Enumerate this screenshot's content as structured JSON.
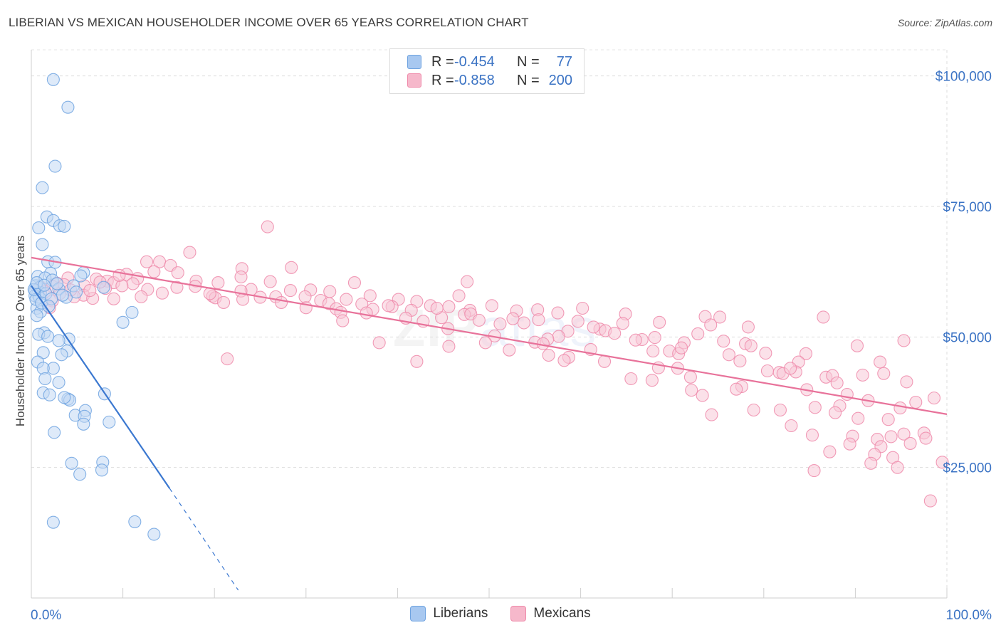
{
  "header": {
    "title": "LIBERIAN VS MEXICAN HOUSEHOLDER INCOME OVER 65 YEARS CORRELATION CHART",
    "source": "Source: ZipAtlas.com"
  },
  "legend_top": {
    "rows": [
      {
        "r_label": "R =",
        "r_value": "-0.454",
        "n_label": "N =",
        "n_value": "77",
        "color": "#a8c8f0"
      },
      {
        "r_label": "R =",
        "r_value": "-0.858",
        "n_label": "N =",
        "n_value": "200",
        "color": "#f6b8cb"
      }
    ]
  },
  "legend_bottom": {
    "items": [
      {
        "label": "Liberians",
        "color": "#a8c8f0"
      },
      {
        "label": "Mexicans",
        "color": "#f6b8cb"
      }
    ]
  },
  "watermark": {
    "main": "ZIP",
    "sub": "atlas"
  },
  "chart_data": {
    "type": "scatter",
    "title": "LIBERIAN VS MEXICAN HOUSEHOLDER INCOME OVER 65 YEARS CORRELATION CHART",
    "xlabel": "",
    "ylabel": "Householder Income Over 65 years",
    "xlim": [
      0,
      100
    ],
    "ylim": [
      0,
      105000
    ],
    "x_tick_labels": [
      "0.0%",
      "100.0%"
    ],
    "y_ticks": [
      25000,
      50000,
      75000,
      100000
    ],
    "y_tick_labels": [
      "$25,000",
      "$50,000",
      "$75,000",
      "$100,000"
    ],
    "grid": true,
    "series": [
      {
        "name": "Liberians",
        "color": "#6fa3e0",
        "fill": "#c2d8f4",
        "r": -0.454,
        "n": 77,
        "trendline": {
          "x": [
            0.0,
            15.1
          ],
          "y": [
            59800,
            21000
          ],
          "extended_to": [
            22.6,
            1500
          ]
        },
        "points": [
          [
            2.4,
            99300
          ],
          [
            4.0,
            94000
          ],
          [
            2.6,
            82700
          ],
          [
            1.2,
            78600
          ],
          [
            1.7,
            73000
          ],
          [
            2.4,
            72300
          ],
          [
            3.1,
            71300
          ],
          [
            3.6,
            71200
          ],
          [
            0.8,
            70900
          ],
          [
            1.2,
            67700
          ],
          [
            1.8,
            64400
          ],
          [
            2.6,
            64300
          ],
          [
            5.7,
            62300
          ],
          [
            2.1,
            62200
          ],
          [
            5.4,
            61700
          ],
          [
            0.7,
            61600
          ],
          [
            1.5,
            61300
          ],
          [
            2.3,
            60900
          ],
          [
            4.6,
            59800
          ],
          [
            0.5,
            59800
          ],
          [
            0.9,
            59500
          ],
          [
            7.9,
            59500
          ],
          [
            3.0,
            59200
          ],
          [
            0.4,
            58900
          ],
          [
            1.0,
            58500
          ],
          [
            0.7,
            58100
          ],
          [
            0.4,
            57900
          ],
          [
            3.8,
            57600
          ],
          [
            0.9,
            57500
          ],
          [
            0.6,
            55500
          ],
          [
            1.0,
            54800
          ],
          [
            0.6,
            54100
          ],
          [
            11.0,
            54700
          ],
          [
            10.0,
            52800
          ],
          [
            1.4,
            50800
          ],
          [
            0.8,
            50500
          ],
          [
            1.8,
            50100
          ],
          [
            4.1,
            49600
          ],
          [
            3.0,
            49300
          ],
          [
            1.3,
            47000
          ],
          [
            3.9,
            47300
          ],
          [
            3.3,
            46600
          ],
          [
            0.7,
            45200
          ],
          [
            2.4,
            44000
          ],
          [
            1.3,
            44000
          ],
          [
            1.5,
            42000
          ],
          [
            3.0,
            41300
          ],
          [
            8.0,
            39100
          ],
          [
            1.3,
            39300
          ],
          [
            2.0,
            38900
          ],
          [
            4.0,
            38100
          ],
          [
            4.2,
            37900
          ],
          [
            3.6,
            38400
          ],
          [
            5.9,
            35900
          ],
          [
            4.8,
            35000
          ],
          [
            5.8,
            34800
          ],
          [
            8.5,
            33700
          ],
          [
            5.7,
            33300
          ],
          [
            2.5,
            31700
          ],
          [
            7.8,
            26000
          ],
          [
            4.4,
            25800
          ],
          [
            7.7,
            24500
          ],
          [
            5.3,
            23700
          ],
          [
            2.4,
            14500
          ],
          [
            11.3,
            14600
          ],
          [
            13.4,
            12200
          ],
          [
            0.5,
            57200
          ],
          [
            1.6,
            58300
          ],
          [
            2.8,
            60200
          ],
          [
            1.1,
            56500
          ],
          [
            0.3,
            59100
          ],
          [
            3.4,
            58000
          ],
          [
            2.2,
            57300
          ],
          [
            1.9,
            55900
          ],
          [
            0.6,
            60400
          ],
          [
            4.9,
            58600
          ],
          [
            1.4,
            59900
          ]
        ]
      },
      {
        "name": "Mexicans",
        "color": "#ef8aaa",
        "fill": "#f8c9d7",
        "r": -0.858,
        "n": 200,
        "trendline": {
          "x": [
            0.0,
            100.0
          ],
          "y": [
            65200,
            35200
          ]
        },
        "points": [
          [
            25.8,
            71100
          ],
          [
            17.3,
            66200
          ],
          [
            12.6,
            64400
          ],
          [
            14.0,
            64400
          ],
          [
            15.2,
            63700
          ],
          [
            23.0,
            63100
          ],
          [
            28.4,
            63300
          ],
          [
            13.4,
            62500
          ],
          [
            16.0,
            62300
          ],
          [
            10.4,
            62000
          ],
          [
            11.6,
            61200
          ],
          [
            7.1,
            61100
          ],
          [
            4.0,
            61300
          ],
          [
            22.9,
            61500
          ],
          [
            8.3,
            60700
          ],
          [
            9.0,
            60400
          ],
          [
            18.0,
            60700
          ],
          [
            20.4,
            60400
          ],
          [
            35.3,
            60400
          ],
          [
            47.6,
            60600
          ],
          [
            11.1,
            60200
          ],
          [
            2.8,
            60300
          ],
          [
            5.8,
            59800
          ],
          [
            9.9,
            59800
          ],
          [
            17.9,
            59700
          ],
          [
            2.3,
            59700
          ],
          [
            1.1,
            59500
          ],
          [
            8.1,
            59300
          ],
          [
            12.7,
            59100
          ],
          [
            24.0,
            59100
          ],
          [
            28.3,
            58900
          ],
          [
            30.5,
            59000
          ],
          [
            32.6,
            58700
          ],
          [
            22.9,
            58800
          ],
          [
            14.3,
            58400
          ],
          [
            5.7,
            58000
          ],
          [
            3.1,
            58300
          ],
          [
            26.7,
            57700
          ],
          [
            37.0,
            57900
          ],
          [
            46.7,
            57900
          ],
          [
            19.8,
            57800
          ],
          [
            25.0,
            57600
          ],
          [
            29.9,
            57700
          ],
          [
            12.0,
            57700
          ],
          [
            20.1,
            57500
          ],
          [
            6.7,
            57400
          ],
          [
            9.0,
            57300
          ],
          [
            23.1,
            57200
          ],
          [
            34.4,
            57200
          ],
          [
            31.6,
            57000
          ],
          [
            40.1,
            57200
          ],
          [
            42.1,
            56800
          ],
          [
            21.0,
            56600
          ],
          [
            27.3,
            56600
          ],
          [
            32.5,
            56400
          ],
          [
            36.1,
            56300
          ],
          [
            43.6,
            56000
          ],
          [
            50.3,
            56000
          ],
          [
            45.6,
            55800
          ],
          [
            39.4,
            55800
          ],
          [
            33.3,
            55400
          ],
          [
            37.3,
            55300
          ],
          [
            41.5,
            55100
          ],
          [
            47.9,
            55100
          ],
          [
            55.3,
            55200
          ],
          [
            60.2,
            55500
          ],
          [
            53.0,
            55000
          ],
          [
            33.8,
            54700
          ],
          [
            36.6,
            54600
          ],
          [
            47.3,
            54300
          ],
          [
            48.0,
            54400
          ],
          [
            57.5,
            54600
          ],
          [
            64.9,
            54400
          ],
          [
            73.6,
            53900
          ],
          [
            75.2,
            53800
          ],
          [
            86.5,
            53800
          ],
          [
            40.9,
            53600
          ],
          [
            44.8,
            53700
          ],
          [
            52.6,
            53500
          ],
          [
            55.4,
            53300
          ],
          [
            59.7,
            53000
          ],
          [
            34.0,
            53100
          ],
          [
            42.8,
            53000
          ],
          [
            51.2,
            52500
          ],
          [
            64.6,
            52600
          ],
          [
            68.6,
            52800
          ],
          [
            74.2,
            52300
          ],
          [
            78.3,
            51900
          ],
          [
            45.5,
            51600
          ],
          [
            62.1,
            51500
          ],
          [
            58.6,
            51100
          ],
          [
            62.7,
            51200
          ],
          [
            63.7,
            50700
          ],
          [
            72.8,
            50600
          ],
          [
            50.6,
            50200
          ],
          [
            57.6,
            50100
          ],
          [
            68.1,
            49900
          ],
          [
            66.7,
            49500
          ],
          [
            56.4,
            49600
          ],
          [
            38.0,
            48900
          ],
          [
            49.6,
            48900
          ],
          [
            55.0,
            49000
          ],
          [
            55.9,
            48700
          ],
          [
            75.6,
            49200
          ],
          [
            71.3,
            48900
          ],
          [
            78.0,
            48700
          ],
          [
            78.6,
            48300
          ],
          [
            90.2,
            48300
          ],
          [
            95.3,
            49300
          ],
          [
            45.6,
            48200
          ],
          [
            52.2,
            47500
          ],
          [
            61.1,
            47600
          ],
          [
            67.9,
            47300
          ],
          [
            69.7,
            47300
          ],
          [
            70.7,
            46800
          ],
          [
            80.2,
            46900
          ],
          [
            84.6,
            46800
          ],
          [
            56.5,
            46500
          ],
          [
            58.7,
            46100
          ],
          [
            21.4,
            45800
          ],
          [
            42.1,
            45300
          ],
          [
            58.2,
            45500
          ],
          [
            62.6,
            45300
          ],
          [
            77.4,
            45400
          ],
          [
            83.8,
            45200
          ],
          [
            92.7,
            45200
          ],
          [
            68.5,
            44100
          ],
          [
            70.6,
            44000
          ],
          [
            80.4,
            43500
          ],
          [
            81.7,
            43200
          ],
          [
            82.1,
            43000
          ],
          [
            83.5,
            43300
          ],
          [
            72.0,
            42300
          ],
          [
            86.8,
            42300
          ],
          [
            93.1,
            43000
          ],
          [
            87.5,
            42600
          ],
          [
            90.8,
            42700
          ],
          [
            65.5,
            42000
          ],
          [
            67.8,
            41700
          ],
          [
            77.6,
            40500
          ],
          [
            72.1,
            39800
          ],
          [
            77.0,
            40000
          ],
          [
            84.7,
            39900
          ],
          [
            89.1,
            39000
          ],
          [
            73.3,
            38800
          ],
          [
            98.6,
            38300
          ],
          [
            95.6,
            41400
          ],
          [
            91.4,
            37800
          ],
          [
            85.6,
            36500
          ],
          [
            88.3,
            36800
          ],
          [
            94.9,
            36400
          ],
          [
            78.9,
            36000
          ],
          [
            81.8,
            36000
          ],
          [
            87.8,
            35500
          ],
          [
            74.3,
            35100
          ],
          [
            90.3,
            34400
          ],
          [
            93.6,
            34200
          ],
          [
            97.5,
            31600
          ],
          [
            89.7,
            31000
          ],
          [
            83.0,
            33000
          ],
          [
            95.3,
            31400
          ],
          [
            97.7,
            30600
          ],
          [
            85.3,
            31200
          ],
          [
            92.4,
            30400
          ],
          [
            89.4,
            29500
          ],
          [
            93.9,
            30900
          ],
          [
            96.0,
            29600
          ],
          [
            92.8,
            29000
          ],
          [
            87.2,
            28000
          ],
          [
            92.1,
            27500
          ],
          [
            94.1,
            26900
          ],
          [
            99.5,
            26000
          ],
          [
            94.6,
            25000
          ],
          [
            85.5,
            24400
          ],
          [
            98.2,
            18600
          ],
          [
            91.7,
            25800
          ],
          [
            4.7,
            57700
          ],
          [
            6.4,
            58900
          ],
          [
            2.3,
            56900
          ],
          [
            3.6,
            60000
          ],
          [
            1.5,
            58700
          ],
          [
            7.5,
            60500
          ],
          [
            9.6,
            61800
          ],
          [
            15.9,
            59500
          ],
          [
            19.5,
            58300
          ],
          [
            26.1,
            60600
          ],
          [
            30.0,
            55600
          ],
          [
            39.0,
            56000
          ],
          [
            44.3,
            55500
          ],
          [
            48.9,
            53200
          ],
          [
            53.8,
            52700
          ],
          [
            61.4,
            51900
          ],
          [
            66.0,
            49400
          ],
          [
            71.0,
            47900
          ],
          [
            76.2,
            46600
          ],
          [
            82.9,
            44000
          ],
          [
            88.0,
            41200
          ],
          [
            96.6,
            37500
          ],
          [
            4.3,
            59000
          ],
          [
            2.0,
            55600
          ]
        ]
      }
    ]
  }
}
